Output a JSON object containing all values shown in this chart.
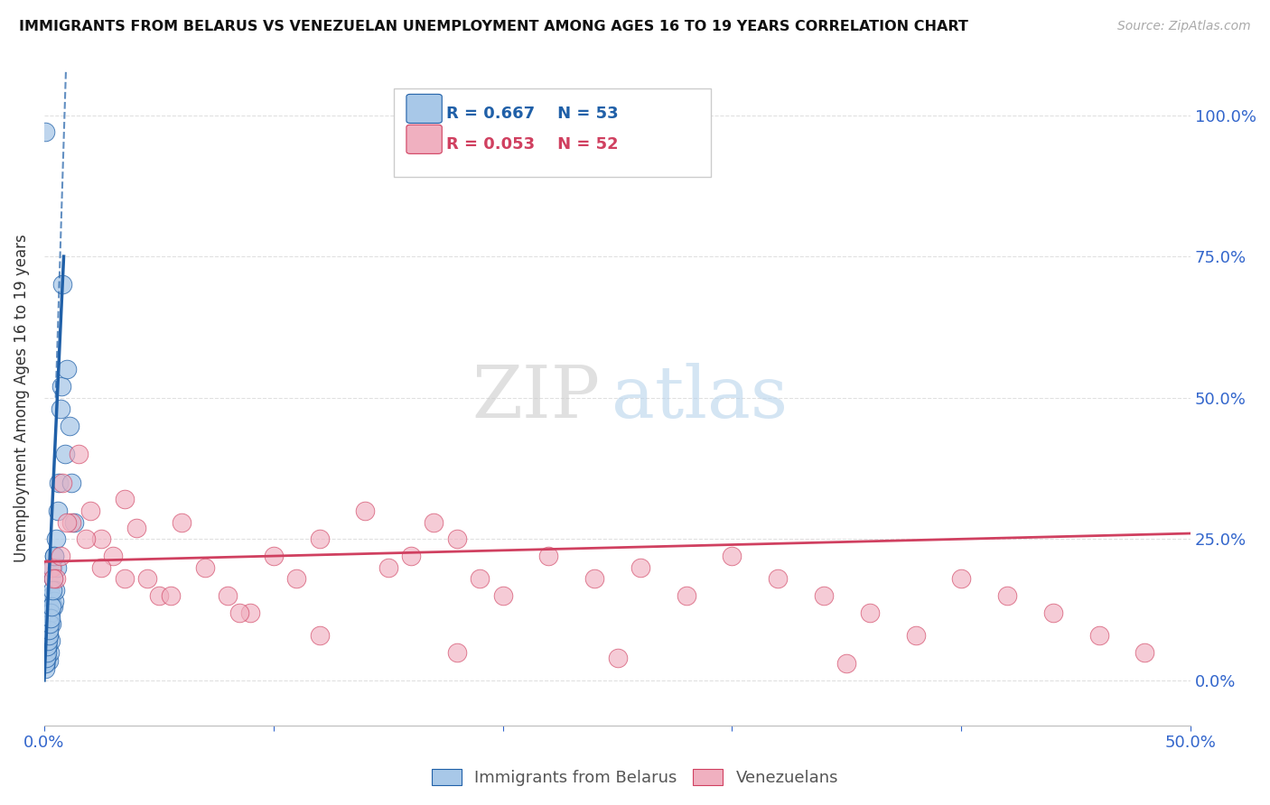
{
  "title": "IMMIGRANTS FROM BELARUS VS VENEZUELAN UNEMPLOYMENT AMONG AGES 16 TO 19 YEARS CORRELATION CHART",
  "source": "Source: ZipAtlas.com",
  "ylabel": "Unemployment Among Ages 16 to 19 years",
  "legend_blue_r": "R = 0.667",
  "legend_blue_n": "N = 53",
  "legend_pink_r": "R = 0.053",
  "legend_pink_n": "N = 52",
  "legend_blue_label": "Immigrants from Belarus",
  "legend_pink_label": "Venezuelans",
  "xlim": [
    0.0,
    50.0
  ],
  "ylim": [
    -8.0,
    108.0
  ],
  "yticks": [
    0,
    25,
    50,
    75,
    100
  ],
  "ytick_labels": [
    "0.0%",
    "25.0%",
    "50.0%",
    "75.0%",
    "100.0%"
  ],
  "blue_color": "#a8c8e8",
  "blue_line_color": "#2060a8",
  "pink_color": "#f0b0c0",
  "pink_line_color": "#d04060",
  "blue_scatter_x": [
    0.05,
    0.08,
    0.1,
    0.12,
    0.15,
    0.18,
    0.2,
    0.22,
    0.25,
    0.28,
    0.3,
    0.32,
    0.35,
    0.38,
    0.4,
    0.42,
    0.45,
    0.48,
    0.5,
    0.55,
    0.6,
    0.65,
    0.7,
    0.75,
    0.8,
    0.9,
    1.0,
    1.1,
    1.2,
    1.3,
    0.05,
    0.07,
    0.09,
    0.11,
    0.13,
    0.16,
    0.19,
    0.21,
    0.24,
    0.27,
    0.05,
    0.06,
    0.08,
    0.1,
    0.12,
    0.15,
    0.18,
    0.2,
    0.23,
    0.26,
    0.3,
    0.35,
    0.45
  ],
  "blue_scatter_y": [
    97.0,
    3.0,
    5.0,
    4.0,
    6.0,
    3.5,
    8.0,
    5.0,
    12.0,
    7.0,
    15.0,
    10.0,
    20.0,
    13.0,
    18.0,
    14.0,
    22.0,
    16.0,
    25.0,
    20.0,
    30.0,
    35.0,
    48.0,
    52.0,
    70.0,
    40.0,
    55.0,
    45.0,
    35.0,
    28.0,
    3.0,
    4.0,
    5.0,
    6.0,
    7.0,
    8.0,
    9.0,
    10.0,
    11.0,
    12.0,
    2.0,
    3.0,
    4.0,
    5.0,
    6.0,
    7.0,
    8.0,
    9.0,
    10.0,
    11.0,
    13.0,
    16.0,
    22.0
  ],
  "pink_scatter_x": [
    0.3,
    0.5,
    0.8,
    1.2,
    1.5,
    2.0,
    2.5,
    3.0,
    3.5,
    4.0,
    4.5,
    5.0,
    6.0,
    7.0,
    8.0,
    9.0,
    10.0,
    11.0,
    12.0,
    14.0,
    15.0,
    16.0,
    17.0,
    18.0,
    19.0,
    20.0,
    22.0,
    24.0,
    26.0,
    28.0,
    30.0,
    32.0,
    34.0,
    36.0,
    38.0,
    40.0,
    42.0,
    44.0,
    46.0,
    48.0,
    0.4,
    0.7,
    1.0,
    1.8,
    2.5,
    3.5,
    5.5,
    8.5,
    12.0,
    18.0,
    25.0,
    35.0
  ],
  "pink_scatter_y": [
    20.0,
    18.0,
    35.0,
    28.0,
    40.0,
    30.0,
    25.0,
    22.0,
    32.0,
    27.0,
    18.0,
    15.0,
    28.0,
    20.0,
    15.0,
    12.0,
    22.0,
    18.0,
    25.0,
    30.0,
    20.0,
    22.0,
    28.0,
    25.0,
    18.0,
    15.0,
    22.0,
    18.0,
    20.0,
    15.0,
    22.0,
    18.0,
    15.0,
    12.0,
    8.0,
    18.0,
    15.0,
    12.0,
    8.0,
    5.0,
    18.0,
    22.0,
    28.0,
    25.0,
    20.0,
    18.0,
    15.0,
    12.0,
    8.0,
    5.0,
    4.0,
    3.0
  ],
  "background_color": "#ffffff",
  "grid_color": "#dddddd"
}
